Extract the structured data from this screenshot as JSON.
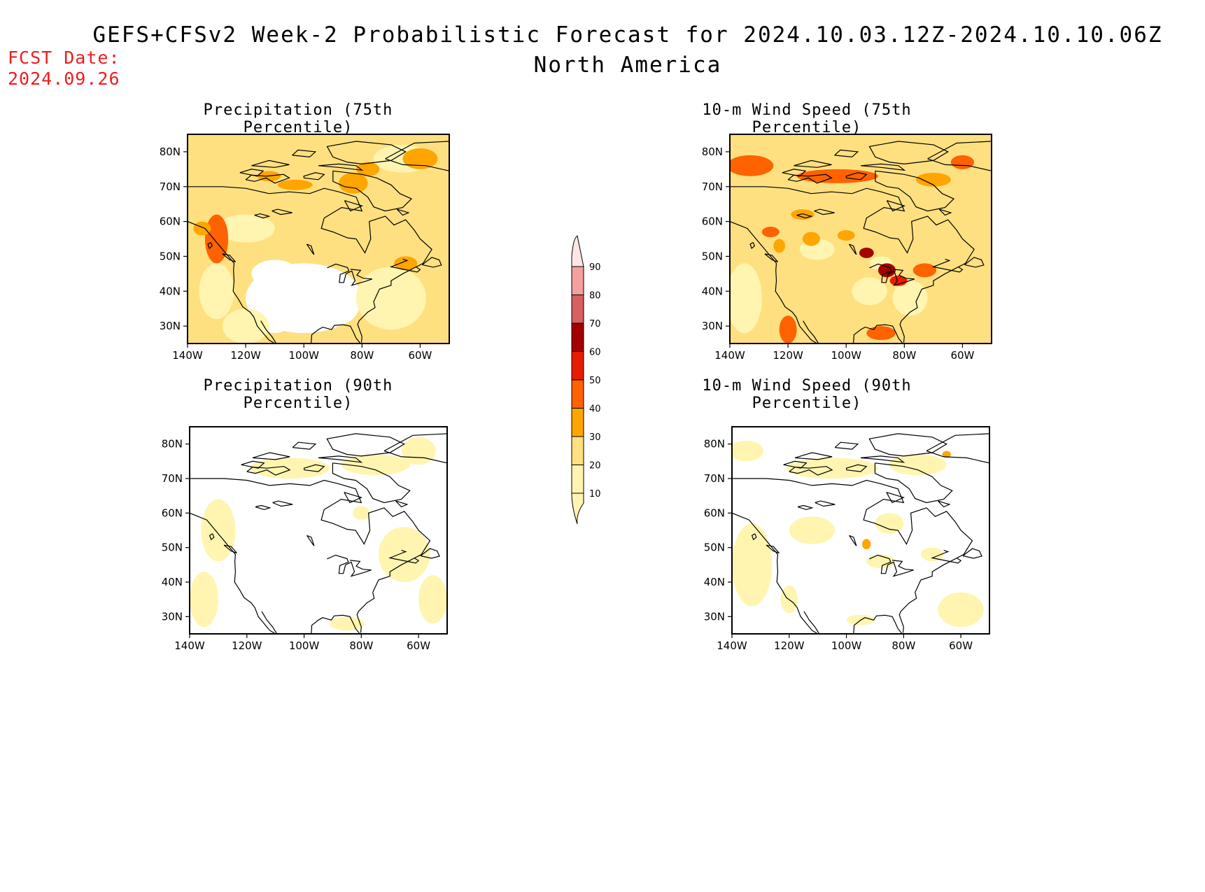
{
  "header": {
    "title_line1": "GEFS+CFSv2 Week-2 Probabilistic Forecast for 2024.10.03.12Z-2024.10.10.06Z",
    "title_line2": "North America",
    "fcst_label": "FCST Date:",
    "fcst_date": "2024.09.26"
  },
  "panels": [
    {
      "title": "Precipitation (75th Percentile)",
      "field": "precip75"
    },
    {
      "title": "10-m Wind Speed (75th Percentile)",
      "field": "wind75"
    },
    {
      "title": "Precipitation (90th Percentile)",
      "field": "precip90"
    },
    {
      "title": "10-m Wind Speed (90th Percentile)",
      "field": "wind90"
    }
  ],
  "axes": {
    "lat_ticks": [
      "80N",
      "70N",
      "60N",
      "50N",
      "40N",
      "30N"
    ],
    "lat_values": [
      80,
      70,
      60,
      50,
      40,
      30
    ],
    "lon_ticks": [
      "140W",
      "120W",
      "100W",
      "80W",
      "60W"
    ],
    "lon_values": [
      -140,
      -120,
      -100,
      -80,
      -60
    ],
    "lat_range": [
      25,
      85
    ],
    "lon_range": [
      -140,
      -50
    ]
  },
  "colorbar": {
    "levels": [
      "10",
      "20",
      "30",
      "40",
      "50",
      "60",
      "70",
      "80",
      "90"
    ],
    "colors": [
      "#fff5b0",
      "#ffe080",
      "#ffa500",
      "#ff6200",
      "#e81c00",
      "#a50000",
      "#d96060",
      "#f2a0a0",
      "#ffe6e6"
    ]
  }
}
